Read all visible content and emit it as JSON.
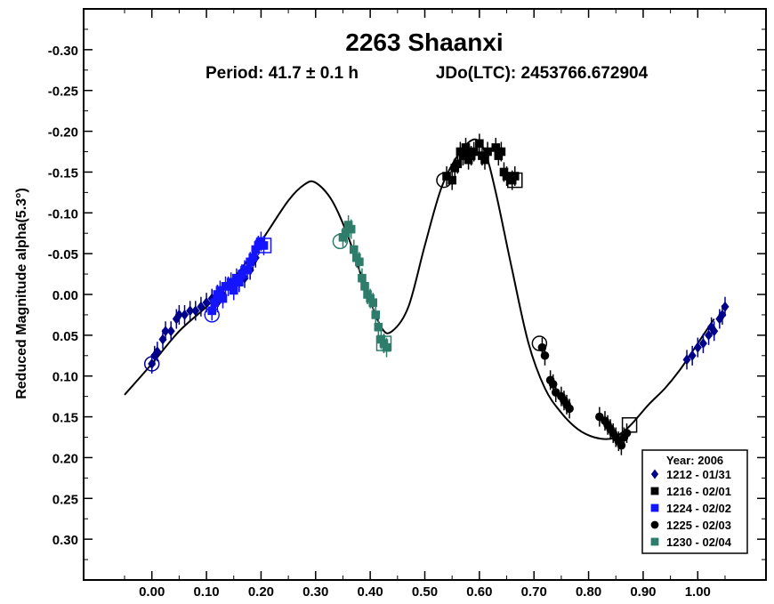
{
  "chart_data": {
    "type": "scatter",
    "title": "2263 Shaanxi",
    "subtitle_period": "Period: 41.7 ± 0.1 h",
    "subtitle_jdo": "JDo(LTC): 2453766.672904",
    "ylabel": "Reduced Magnitude alpha(5.3°)",
    "xlabel": "",
    "xlim": [
      -0.125,
      1.125
    ],
    "ylim": [
      0.35,
      -0.35
    ],
    "y_inverted": true,
    "x_ticks": [
      0.0,
      0.1,
      0.2,
      0.3,
      0.4,
      0.5,
      0.6,
      0.7,
      0.8,
      0.9,
      1.0
    ],
    "x_tick_labels": [
      "0.00",
      "0.10",
      "0.20",
      "0.30",
      "0.40",
      "0.50",
      "0.60",
      "0.70",
      "0.80",
      "0.90",
      "1.00"
    ],
    "y_ticks": [
      -0.3,
      -0.25,
      -0.2,
      -0.15,
      -0.1,
      -0.05,
      0.0,
      0.05,
      0.1,
      0.15,
      0.2,
      0.25,
      0.3
    ],
    "y_tick_labels": [
      "-0.30",
      "-0.25",
      "-0.20",
      "-0.15",
      "-0.10",
      "-0.05",
      "0.00",
      "0.05",
      "0.10",
      "0.15",
      "0.20",
      "0.25",
      "0.30"
    ],
    "grid": false,
    "legend_position": "bottom-right",
    "legend_title": "Year: 2006",
    "fit_curve": {
      "x": [
        -0.05,
        0.0,
        0.05,
        0.1,
        0.15,
        0.2,
        0.25,
        0.28,
        0.3,
        0.33,
        0.36,
        0.39,
        0.42,
        0.44,
        0.47,
        0.5,
        0.53,
        0.56,
        0.59,
        0.61,
        0.63,
        0.66,
        0.69,
        0.72,
        0.75,
        0.78,
        0.81,
        0.84,
        0.86,
        0.88,
        0.91,
        0.94,
        0.97,
        1.0,
        1.03
      ],
      "y": [
        0.123,
        0.085,
        0.045,
        0.015,
        -0.02,
        -0.065,
        -0.115,
        -0.135,
        -0.137,
        -0.115,
        -0.07,
        -0.01,
        0.04,
        0.045,
        0.015,
        -0.06,
        -0.13,
        -0.17,
        -0.19,
        -0.175,
        -0.125,
        -0.03,
        0.06,
        0.115,
        0.145,
        0.165,
        0.175,
        0.177,
        0.17,
        0.158,
        0.135,
        0.115,
        0.09,
        0.06,
        0.03
      ]
    },
    "series": [
      {
        "name": "1212 - 01/31",
        "marker": "diamond",
        "color": "#00008b",
        "points": [
          [
            0.0,
            0.085
          ],
          [
            0.005,
            0.075
          ],
          [
            0.01,
            0.07
          ],
          [
            0.02,
            0.055
          ],
          [
            0.025,
            0.045
          ],
          [
            0.035,
            0.045
          ],
          [
            0.045,
            0.03
          ],
          [
            0.05,
            0.025
          ],
          [
            0.06,
            0.025
          ],
          [
            0.07,
            0.02
          ],
          [
            0.08,
            0.02
          ],
          [
            0.09,
            0.015
          ],
          [
            0.1,
            0.01
          ],
          [
            0.11,
            0.005
          ],
          [
            0.12,
            0.01
          ],
          [
            0.13,
            0.0
          ],
          [
            0.15,
            -0.01
          ],
          [
            0.16,
            -0.015
          ],
          [
            0.17,
            -0.02
          ],
          [
            0.18,
            -0.03
          ],
          [
            0.185,
            -0.04
          ],
          [
            0.19,
            -0.045
          ],
          [
            0.98,
            0.08
          ],
          [
            0.99,
            0.075
          ],
          [
            1.0,
            0.065
          ],
          [
            1.01,
            0.06
          ],
          [
            1.02,
            0.05
          ],
          [
            1.025,
            0.04
          ],
          [
            1.03,
            0.045
          ],
          [
            1.04,
            0.03
          ],
          [
            1.045,
            0.025
          ],
          [
            1.05,
            0.015
          ]
        ]
      },
      {
        "name": "1216 - 02/01",
        "marker": "square",
        "color": "#000000",
        "points": [
          [
            0.54,
            -0.145
          ],
          [
            0.55,
            -0.14
          ],
          [
            0.555,
            -0.155
          ],
          [
            0.56,
            -0.16
          ],
          [
            0.565,
            -0.175
          ],
          [
            0.57,
            -0.17
          ],
          [
            0.575,
            -0.18
          ],
          [
            0.58,
            -0.165
          ],
          [
            0.585,
            -0.17
          ],
          [
            0.59,
            -0.175
          ],
          [
            0.6,
            -0.185
          ],
          [
            0.605,
            -0.17
          ],
          [
            0.61,
            -0.165
          ],
          [
            0.615,
            -0.175
          ],
          [
            0.63,
            -0.18
          ],
          [
            0.635,
            -0.17
          ],
          [
            0.64,
            -0.175
          ],
          [
            0.645,
            -0.15
          ],
          [
            0.65,
            -0.145
          ],
          [
            0.66,
            -0.14
          ],
          [
            0.665,
            -0.145
          ]
        ]
      },
      {
        "name": "1224 - 02/02",
        "marker": "square",
        "color": "#1414ff",
        "points": [
          [
            0.11,
            0.02
          ],
          [
            0.115,
            0.01
          ],
          [
            0.12,
            0.0
          ],
          [
            0.125,
            -0.005
          ],
          [
            0.13,
            0.005
          ],
          [
            0.135,
            -0.01
          ],
          [
            0.14,
            -0.01
          ],
          [
            0.145,
            -0.015
          ],
          [
            0.15,
            -0.005
          ],
          [
            0.155,
            -0.02
          ],
          [
            0.16,
            -0.015
          ],
          [
            0.165,
            -0.025
          ],
          [
            0.17,
            -0.03
          ],
          [
            0.175,
            -0.03
          ],
          [
            0.18,
            -0.04
          ],
          [
            0.185,
            -0.045
          ],
          [
            0.19,
            -0.055
          ],
          [
            0.195,
            -0.06
          ],
          [
            0.2,
            -0.065
          ],
          [
            0.205,
            -0.06
          ]
        ]
      },
      {
        "name": "1225 - 02/03",
        "marker": "circle",
        "color": "#000000",
        "points": [
          [
            0.715,
            0.065
          ],
          [
            0.72,
            0.075
          ],
          [
            0.73,
            0.105
          ],
          [
            0.735,
            0.11
          ],
          [
            0.74,
            0.12
          ],
          [
            0.75,
            0.125
          ],
          [
            0.755,
            0.13
          ],
          [
            0.76,
            0.135
          ],
          [
            0.765,
            0.14
          ],
          [
            0.82,
            0.15
          ],
          [
            0.83,
            0.155
          ],
          [
            0.835,
            0.16
          ],
          [
            0.84,
            0.165
          ],
          [
            0.845,
            0.17
          ],
          [
            0.85,
            0.175
          ],
          [
            0.855,
            0.18
          ],
          [
            0.86,
            0.185
          ],
          [
            0.865,
            0.175
          ],
          [
            0.87,
            0.17
          ]
        ]
      },
      {
        "name": "1230 - 02/04",
        "marker": "square",
        "color": "#2e7d6b",
        "points": [
          [
            0.35,
            -0.07
          ],
          [
            0.355,
            -0.075
          ],
          [
            0.36,
            -0.085
          ],
          [
            0.365,
            -0.08
          ],
          [
            0.37,
            -0.055
          ],
          [
            0.375,
            -0.045
          ],
          [
            0.38,
            -0.04
          ],
          [
            0.385,
            -0.02
          ],
          [
            0.39,
            -0.01
          ],
          [
            0.395,
            0.0
          ],
          [
            0.4,
            0.005
          ],
          [
            0.405,
            0.01
          ],
          [
            0.41,
            0.025
          ],
          [
            0.415,
            0.04
          ],
          [
            0.42,
            0.055
          ],
          [
            0.425,
            0.06
          ],
          [
            0.43,
            0.065
          ]
        ]
      }
    ],
    "start_markers": [
      {
        "shape": "circle",
        "color": "#00008b",
        "x": 0.0,
        "y": 0.085
      },
      {
        "shape": "circle",
        "color": "#1414ff",
        "x": 0.11,
        "y": 0.025
      },
      {
        "shape": "square",
        "color": "#1414ff",
        "x": 0.205,
        "y": -0.06
      },
      {
        "shape": "circle",
        "color": "#2e7d6b",
        "x": 0.345,
        "y": -0.065
      },
      {
        "shape": "square",
        "color": "#2e7d6b",
        "x": 0.425,
        "y": 0.06
      },
      {
        "shape": "circle",
        "color": "#000000",
        "x": 0.535,
        "y": -0.14
      },
      {
        "shape": "square",
        "color": "#000000",
        "x": 0.665,
        "y": -0.14
      },
      {
        "shape": "circle",
        "color": "#000000",
        "x": 0.71,
        "y": 0.06
      },
      {
        "shape": "square",
        "color": "#000000",
        "x": 0.875,
        "y": 0.16
      }
    ]
  }
}
